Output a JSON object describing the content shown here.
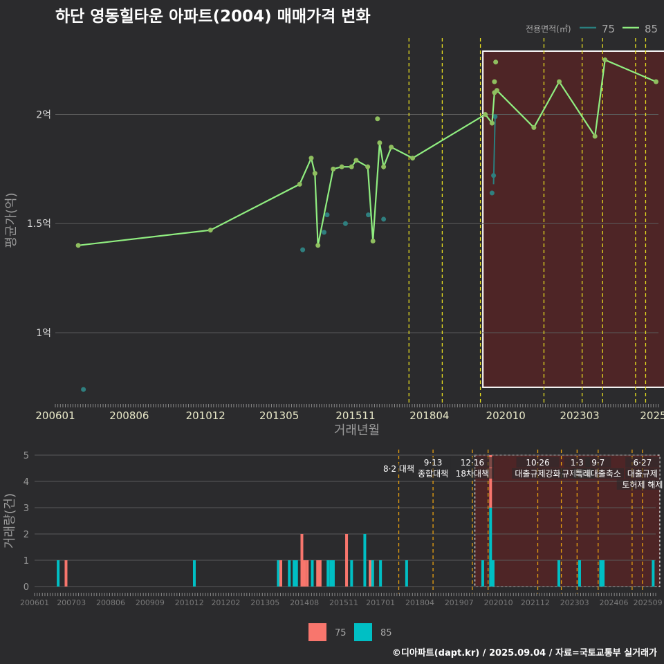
{
  "title": "하단 영동힐타운 아파트(2004) 매매가격 변화",
  "credit": "©디아파트(dapt.kr) / 2025.09.04 / 자료=국토교통부 실거래가",
  "colors": {
    "s75_line": "#2a7f7f",
    "s85_line": "#90ee80",
    "s85_point": "#8fbf5f",
    "s75_point": "#2f7f7f",
    "bar75": "#f8766d",
    "bar85": "#00bfc4",
    "vline": "#e8e020",
    "vline_bottom": "#e8a010",
    "highlight": "#7a1f1f"
  },
  "chart_data": [
    {
      "type": "line",
      "title": "하단 영동힐타운 아파트(2004) 매매가격 변화",
      "xlabel": "거래년월",
      "ylabel": "평균가(억)",
      "xlim": [
        2006.0,
        2025.75
      ],
      "ylim": [
        0.68,
        2.35
      ],
      "yticks": [
        1.0,
        1.5,
        2.0
      ],
      "ytick_labels": [
        "1억",
        "1.5억",
        "2억"
      ],
      "xticks": [
        2006.0,
        2008.42,
        2010.92,
        2013.33,
        2015.83,
        2018.25,
        2020.75,
        2023.17,
        2025.58
      ],
      "xtick_labels": [
        "200601",
        "200806",
        "201012",
        "201305",
        "201511",
        "201804",
        "202010",
        "202303",
        "2025"
      ],
      "legend": {
        "title": "전용면적(㎡)",
        "entries": [
          "75",
          "85"
        ],
        "placement": "top-right"
      },
      "highlight_range": [
        2020.0,
        2025.0
      ],
      "vlines": [
        2017.58,
        2018.67,
        2019.92,
        2022.0,
        2023.25,
        2023.92,
        2025.0,
        2025.33
      ],
      "series": [
        {
          "name": "85",
          "x": [
            2006.75,
            2011.08,
            2014.0,
            2014.38,
            2014.5,
            2014.6,
            2015.1,
            2015.38,
            2015.7,
            2015.85,
            2016.23,
            2016.4,
            2016.62,
            2016.75,
            2017.0,
            2017.7,
            2020.08,
            2020.3,
            2020.38,
            2020.46,
            2021.67,
            2022.5,
            2023.67,
            2024.0,
            2025.67
          ],
          "y": [
            1.4,
            1.47,
            1.68,
            1.8,
            1.73,
            1.4,
            1.75,
            1.76,
            1.76,
            1.79,
            1.76,
            1.42,
            1.87,
            1.76,
            1.85,
            1.8,
            2.0,
            1.96,
            2.1,
            2.11,
            1.94,
            2.15,
            1.9,
            2.25,
            2.15
          ]
        },
        {
          "name": "75",
          "x": [
            2006.92,
            2014.1,
            2014.8,
            2014.9,
            2015.5,
            2016.25,
            2016.75,
            2020.3,
            2020.35,
            2020.4
          ],
          "y": [
            0.74,
            1.38,
            1.46,
            1.54,
            1.5,
            1.54,
            1.52,
            1.64,
            1.72,
            1.99
          ]
        }
      ],
      "extra_points_85": {
        "x": [
          2016.55,
          2020.38,
          2020.42
        ],
        "y": [
          1.98,
          2.15,
          2.24
        ]
      }
    },
    {
      "type": "bar",
      "ylabel": "거래량(건)",
      "xlim": [
        2006.0,
        2025.75
      ],
      "ylim": [
        0,
        5
      ],
      "yticks": [
        0,
        1,
        2,
        3,
        4,
        5
      ],
      "xticks": [
        2006.0,
        2007.17,
        2008.42,
        2009.67,
        2010.92,
        2012.08,
        2013.33,
        2014.58,
        2015.83,
        2017.0,
        2018.25,
        2019.5,
        2020.75,
        2021.92,
        2023.17,
        2024.42,
        2025.5
      ],
      "xtick_labels": [
        "200601",
        "200703",
        "200806",
        "200909",
        "201012",
        "201202",
        "201305",
        "201408",
        "201511",
        "201701",
        "201804",
        "201907",
        "202010",
        "202112",
        "202303",
        "202406",
        "202509"
      ],
      "legend": {
        "entries": [
          "75",
          "85"
        ],
        "placement": "bottom"
      },
      "highlight_range": [
        2020.0,
        2025.0
      ],
      "vlines": [
        2017.58,
        2018.67,
        2019.92,
        2020.42,
        2022.0,
        2022.75,
        2023.25,
        2023.92,
        2025.0,
        2025.33
      ],
      "annotations": [
        {
          "x": 2017.58,
          "lines": [
            "8·2 대책"
          ]
        },
        {
          "x": 2018.67,
          "lines": [
            "9·13",
            "종합대책"
          ]
        },
        {
          "x": 2019.92,
          "lines": [
            "12·16",
            "18차대책"
          ]
        },
        {
          "x": 2022.0,
          "lines": [
            "10·26",
            "대출규제강화"
          ]
        },
        {
          "x": 2023.25,
          "lines": [
            "1·3",
            "규제완화"
          ]
        },
        {
          "x": 2023.92,
          "lines": [
            "9·7",
            "특례대출축소"
          ]
        },
        {
          "x": 2025.33,
          "lines": [
            "6·27",
            "대출규제",
            "토허제 해제"
          ]
        }
      ],
      "bars": [
        {
          "x": 2006.75,
          "v75": 0,
          "v85": 1
        },
        {
          "x": 2007.0,
          "v75": 1,
          "v85": 0
        },
        {
          "x": 2011.08,
          "v75": 0,
          "v85": 1
        },
        {
          "x": 2013.75,
          "v75": 0,
          "v85": 1
        },
        {
          "x": 2013.83,
          "v75": 1,
          "v85": 0
        },
        {
          "x": 2014.1,
          "v75": 0,
          "v85": 1
        },
        {
          "x": 2014.25,
          "v75": 0,
          "v85": 1
        },
        {
          "x": 2014.33,
          "v75": 0,
          "v85": 1
        },
        {
          "x": 2014.5,
          "v75": 2,
          "v85": 0
        },
        {
          "x": 2014.58,
          "v75": 1,
          "v85": 0
        },
        {
          "x": 2014.67,
          "v75": 1,
          "v85": 0
        },
        {
          "x": 2014.83,
          "v75": 0,
          "v85": 1
        },
        {
          "x": 2015.0,
          "v75": 1,
          "v85": 0
        },
        {
          "x": 2015.08,
          "v75": 1,
          "v85": 0
        },
        {
          "x": 2015.33,
          "v75": 0,
          "v85": 1
        },
        {
          "x": 2015.42,
          "v75": 0,
          "v85": 1
        },
        {
          "x": 2015.5,
          "v75": 0,
          "v85": 1
        },
        {
          "x": 2015.92,
          "v75": 2,
          "v85": 0
        },
        {
          "x": 2016.08,
          "v75": 0,
          "v85": 1
        },
        {
          "x": 2016.5,
          "v75": 0,
          "v85": 2
        },
        {
          "x": 2016.67,
          "v75": 1,
          "v85": 0
        },
        {
          "x": 2016.75,
          "v75": 0,
          "v85": 1
        },
        {
          "x": 2017.0,
          "v75": 0,
          "v85": 1
        },
        {
          "x": 2017.83,
          "v75": 0,
          "v85": 1
        },
        {
          "x": 2020.25,
          "v75": 0,
          "v85": 1
        },
        {
          "x": 2020.5,
          "v75": 2,
          "v85": 3
        },
        {
          "x": 2020.58,
          "v75": 0,
          "v85": 1
        },
        {
          "x": 2022.67,
          "v75": 0,
          "v85": 1
        },
        {
          "x": 2023.33,
          "v75": 0,
          "v85": 1
        },
        {
          "x": 2024.0,
          "v75": 0,
          "v85": 1
        },
        {
          "x": 2024.08,
          "v75": 0,
          "v85": 1
        },
        {
          "x": 2025.67,
          "v75": 0,
          "v85": 1
        }
      ]
    }
  ]
}
